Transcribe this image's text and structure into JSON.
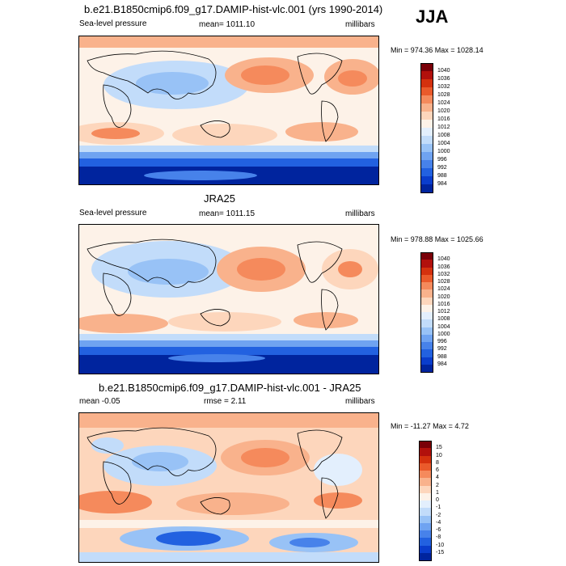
{
  "season": "JJA",
  "panels": [
    {
      "title": "b.e21.B1850cmip6.f09_g17.DAMIP-hist-vlc.001 (yrs 1990-2014)",
      "left_label": "Sea-level pressure",
      "center_label": "mean= 1011.10",
      "right_label": "millibars",
      "minmax": "Min = 974.36 Max = 1028.14",
      "colorbar": {
        "labels": [
          "1040",
          "1036",
          "1032",
          "1028",
          "1024",
          "1020",
          "1016",
          "1012",
          "1008",
          "1004",
          "1000",
          "996",
          "992",
          "988",
          "984"
        ],
        "colors": [
          "#7a0008",
          "#b2100c",
          "#d4310e",
          "#ea5a2b",
          "#f58a5c",
          "#f9b28c",
          "#fdd6bc",
          "#fdf2e8",
          "#e3effd",
          "#c2dcfa",
          "#98c2f6",
          "#6fa3f1",
          "#4782ea",
          "#2261e0",
          "#0a3dcc",
          "#00249e"
        ]
      }
    },
    {
      "title": "JRA25",
      "left_label": "Sea-level pressure",
      "center_label": "mean= 1011.15",
      "right_label": "millibars",
      "minmax": "Min = 978.88 Max = 1025.66",
      "colorbar": {
        "labels": [
          "1040",
          "1036",
          "1032",
          "1028",
          "1024",
          "1020",
          "1016",
          "1012",
          "1008",
          "1004",
          "1000",
          "996",
          "992",
          "988",
          "984"
        ],
        "colors": [
          "#7a0008",
          "#b2100c",
          "#d4310e",
          "#ea5a2b",
          "#f58a5c",
          "#f9b28c",
          "#fdd6bc",
          "#fdf2e8",
          "#e3effd",
          "#c2dcfa",
          "#98c2f6",
          "#6fa3f1",
          "#4782ea",
          "#2261e0",
          "#0a3dcc",
          "#00249e"
        ]
      }
    },
    {
      "title": "b.e21.B1850cmip6.f09_g17.DAMIP-hist-vlc.001 - JRA25",
      "left_label": "mean  -0.05",
      "center_label": "rmse =   2.11",
      "right_label": "millibars",
      "minmax": "Min = -11.27 Max =   4.72",
      "colorbar": {
        "labels": [
          "15",
          "10",
          "8",
          "6",
          "4",
          "2",
          "1",
          "0",
          "-1",
          "-2",
          "-4",
          "-6",
          "-8",
          "-10",
          "-15"
        ],
        "colors": [
          "#7a0008",
          "#b2100c",
          "#d4310e",
          "#ea5a2b",
          "#f58a5c",
          "#f9b28c",
          "#fdd6bc",
          "#fdf2e8",
          "#e3effd",
          "#c2dcfa",
          "#98c2f6",
          "#6fa3f1",
          "#4782ea",
          "#2261e0",
          "#0a3dcc",
          "#00249e"
        ]
      }
    }
  ]
}
